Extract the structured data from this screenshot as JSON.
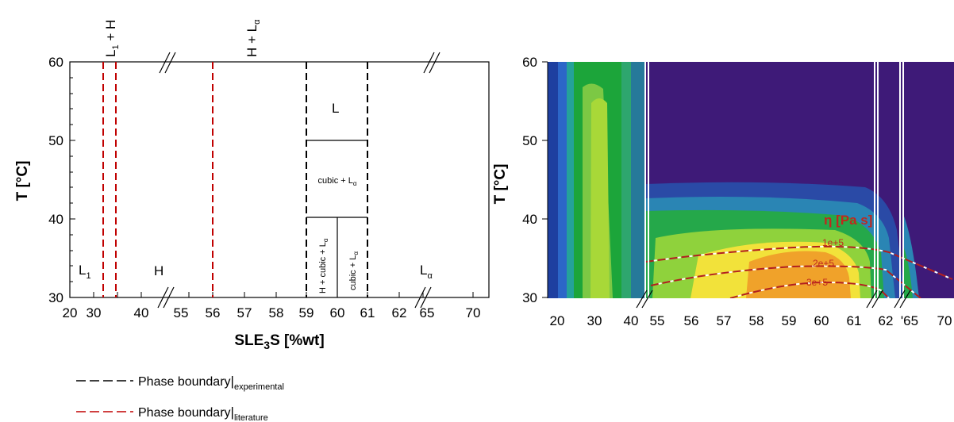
{
  "left_chart": {
    "ylabel": "T [°C]",
    "xlabel_main": "SLE",
    "xlabel_sub": "3",
    "xlabel_rest": "S [%wt]",
    "x_ticks": [
      "20",
      "30",
      "40",
      "55",
      "56",
      "57",
      "58",
      "59",
      "60",
      "61",
      "62",
      "65",
      "70"
    ],
    "y_ticks": [
      "30",
      "40",
      "50",
      "60"
    ],
    "regions": {
      "L1_main": "L",
      "L1_sub": "1",
      "H": "H",
      "L": "L",
      "La_main": "L",
      "La_sub": "α",
      "top_L1H": "L",
      "top_L1H_sub": "1",
      "top_L1H_rest": " + H",
      "top_HLa": "H + L",
      "top_HLa_sub": "α",
      "cubicLa": "cubic + L",
      "cubicLa_sub": "α",
      "HcubicLa": "H + cubic + L",
      "HcubicLa_sub": "α",
      "cubicLa2": "cubic + L",
      "cubicLa2_sub": "α"
    }
  },
  "legend": [
    {
      "text": "Phase boundary",
      "sub": "experimental",
      "color": "#000000"
    },
    {
      "text": "Phase boundary",
      "sub": "literature",
      "color": "#c00000"
    }
  ],
  "right_chart": {
    "ylabel": "T [°C]",
    "x_ticks": [
      "20",
      "30",
      "40",
      "55",
      "56",
      "57",
      "58",
      "59",
      "60",
      "61",
      "62",
      "'65",
      "70"
    ],
    "y_ticks": [
      "30",
      "40",
      "50",
      "60"
    ],
    "eta_label": "η [Pa s]",
    "contour_labels": [
      "1e+5",
      "2e+5",
      "3e+5"
    ]
  },
  "chart_data": [
    {
      "type": "phase-diagram",
      "xlabel": "SLE3S [%wt]",
      "ylabel": "T [°C]",
      "ylim": [
        30,
        60
      ],
      "x_segments": [
        [
          20,
          40
        ],
        [
          55,
          62
        ],
        [
          65,
          70
        ]
      ],
      "literature_boundaries_x": [
        28,
        30.5,
        56
      ],
      "experimental_boundaries_x": [
        59,
        61
      ],
      "experimental_subdivisions": [
        {
          "x": [
            59,
            61
          ],
          "y": 50
        },
        {
          "x": [
            59,
            61
          ],
          "y": 40
        },
        {
          "x": [
            60,
            60
          ],
          "y": [
            30,
            40
          ]
        }
      ]
    },
    {
      "type": "contour",
      "ylabel": "T [°C]",
      "ylim": [
        30,
        60
      ],
      "x_segments": [
        [
          20,
          40
        ],
        [
          55,
          62
        ],
        [
          65,
          70
        ]
      ],
      "quantity": "η [Pa s]",
      "contour_levels": [
        "1e+5",
        "2e+5",
        "3e+5"
      ]
    }
  ]
}
